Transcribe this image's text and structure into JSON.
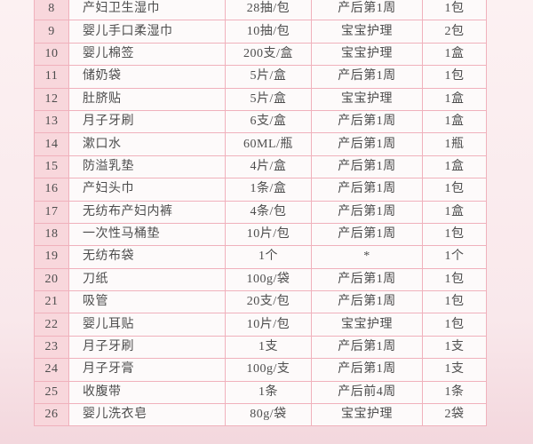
{
  "colors": {
    "page_top": "#fcf1f2",
    "page_mid": "#f9e8eb",
    "page_bottom": "#f3d7dd",
    "cell_bg": "#fdfafa",
    "index_col_bg": "#f8d7dc",
    "border": "#f0b1bc",
    "text": "#4d4d4d"
  },
  "table": {
    "rows": [
      {
        "no": "8",
        "name": "产妇卫生湿巾",
        "spec": "28抽/包",
        "period": "产后第1周",
        "qty": "1包"
      },
      {
        "no": "9",
        "name": "婴儿手口柔湿巾",
        "spec": "10抽/包",
        "period": "宝宝护理",
        "qty": "2包"
      },
      {
        "no": "10",
        "name": "婴儿棉签",
        "spec": "200支/盒",
        "period": "宝宝护理",
        "qty": "1盒"
      },
      {
        "no": "11",
        "name": "储奶袋",
        "spec": "5片/盒",
        "period": "产后第1周",
        "qty": "1包"
      },
      {
        "no": "12",
        "name": "肚脐贴",
        "spec": "5片/盒",
        "period": "宝宝护理",
        "qty": "1盒"
      },
      {
        "no": "13",
        "name": "月子牙刷",
        "spec": "6支/盒",
        "period": "产后第1周",
        "qty": "1盒"
      },
      {
        "no": "14",
        "name": "漱口水",
        "spec": "60ML/瓶",
        "period": "产后第1周",
        "qty": "1瓶"
      },
      {
        "no": "15",
        "name": "防溢乳垫",
        "spec": "4片/盒",
        "period": "产后第1周",
        "qty": "1盒"
      },
      {
        "no": "16",
        "name": "产妇头巾",
        "spec": "1条/盒",
        "period": "产后第1周",
        "qty": "1包"
      },
      {
        "no": "17",
        "name": "无纺布产妇内裤",
        "spec": "4条/包",
        "period": "产后第1周",
        "qty": "1盒"
      },
      {
        "no": "18",
        "name": "一次性马桶垫",
        "spec": "10片/包",
        "period": "产后第1周",
        "qty": "1包"
      },
      {
        "no": "19",
        "name": "无纺布袋",
        "spec": "1个",
        "period": "*",
        "qty": "1个"
      },
      {
        "no": "20",
        "name": "刀纸",
        "spec": "100g/袋",
        "period": "产后第1周",
        "qty": "1包"
      },
      {
        "no": "21",
        "name": "吸管",
        "spec": "20支/包",
        "period": "产后第1周",
        "qty": "1包"
      },
      {
        "no": "22",
        "name": "婴儿耳贴",
        "spec": "10片/包",
        "period": "宝宝护理",
        "qty": "1包"
      },
      {
        "no": "23",
        "name": "月子牙刷",
        "spec": "1支",
        "period": "产后第1周",
        "qty": "1支"
      },
      {
        "no": "24",
        "name": "月子牙膏",
        "spec": "100g/支",
        "period": "产后第1周",
        "qty": "1支"
      },
      {
        "no": "25",
        "name": "收腹带",
        "spec": "1条",
        "period": "产后前4周",
        "qty": "1条"
      },
      {
        "no": "26",
        "name": "婴儿洗衣皂",
        "spec": "80g/袋",
        "period": "宝宝护理",
        "qty": "2袋"
      }
    ]
  }
}
